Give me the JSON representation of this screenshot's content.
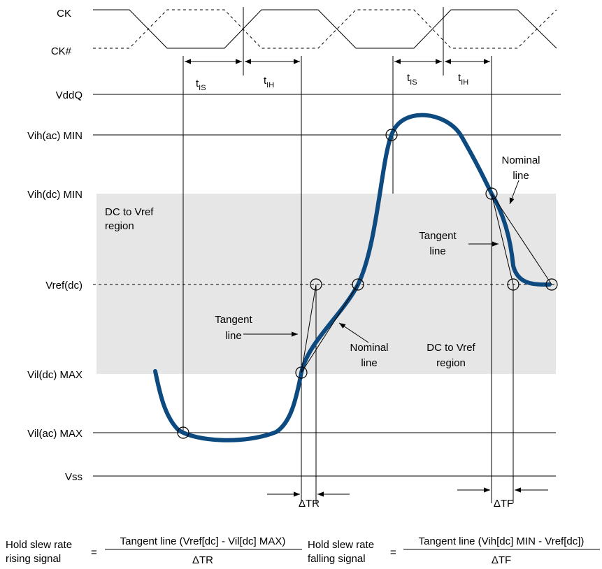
{
  "clock": {
    "ck": "CK",
    "ck_n": "CK#"
  },
  "timing": {
    "t_is_1": {
      "base": "t",
      "sub": "IS"
    },
    "t_ih_1": {
      "base": "t",
      "sub": "IH"
    },
    "t_is_2": {
      "base": "t",
      "sub": "IS"
    },
    "t_ih_2": {
      "base": "t",
      "sub": "IH"
    }
  },
  "levels": {
    "vddq": "VddQ",
    "vih_ac": "Vih(ac) MIN",
    "vih_dc": "Vih(dc) MIN",
    "vref": "Vref(dc)",
    "vil_dc": "Vil(dc) MAX",
    "vil_ac": "Vil(ac) MAX",
    "vss": "Vss"
  },
  "regions": {
    "left_line1": "DC to Vref",
    "left_line2": "region",
    "right_line1": "DC to Vref",
    "right_line2": "region"
  },
  "annotations": {
    "tangent_rise_1": "Tangent",
    "tangent_rise_2": "line",
    "nominal_rise_1": "Nominal",
    "nominal_rise_2": "line",
    "tangent_fall_1": "Tangent",
    "tangent_fall_2": "line",
    "nominal_fall_1": "Nominal",
    "nominal_fall_2": "line",
    "delta_tr": "ΔTR",
    "delta_tf": "ΔTF"
  },
  "formulas": {
    "rise": {
      "label1": "Hold slew rate",
      "label2": "rising signal",
      "eq": "=",
      "numerator": "Tangent line (Vref[dc] - Vil[dc] MAX)",
      "denominator": "ΔTR"
    },
    "fall": {
      "label1": "Hold slew rate",
      "label2": "falling signal",
      "eq": "=",
      "numerator": "Tangent line (Vih[dc] MIN - Vref[dc])",
      "denominator": "ΔTF"
    }
  },
  "colors": {
    "signal": "#0d4a80",
    "region": "#e6e6e6"
  }
}
